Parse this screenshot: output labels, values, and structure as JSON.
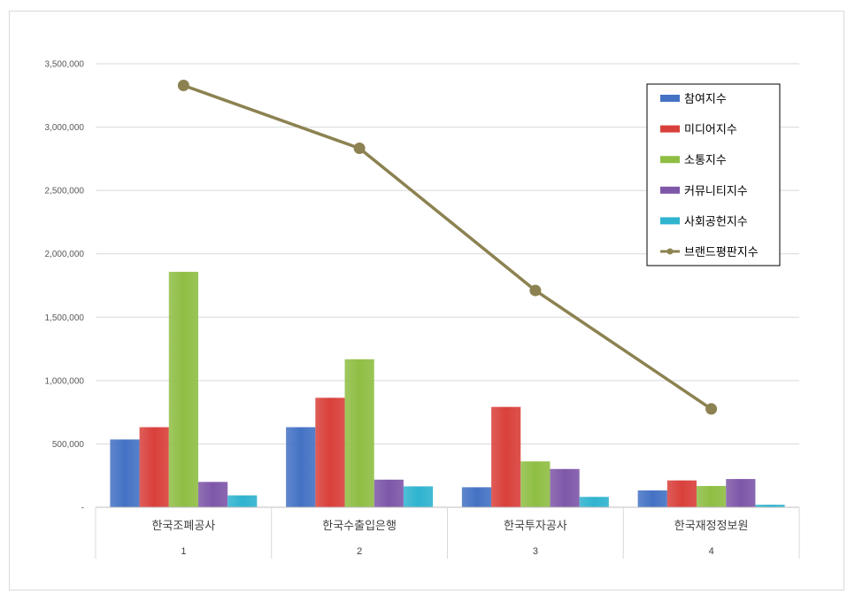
{
  "chart_data": {
    "type": "bar",
    "categories": [
      "한국조폐공사",
      "한국수출입은행",
      "한국투자공사",
      "한국재정정보원"
    ],
    "category_index": [
      "1",
      "2",
      "3",
      "4"
    ],
    "ylim": [
      0,
      3500000
    ],
    "y_ticks": [
      {
        "value": 0,
        "label": "-"
      },
      {
        "value": 500000,
        "label": "500,000"
      },
      {
        "value": 1000000,
        "label": "1,000,000"
      },
      {
        "value": 1500000,
        "label": "1,500,000"
      },
      {
        "value": 2000000,
        "label": "2,000,000"
      },
      {
        "value": 2500000,
        "label": "2,500,000"
      },
      {
        "value": 3000000,
        "label": "3,000,000"
      },
      {
        "value": 3500000,
        "label": "3,500,000"
      }
    ],
    "grid": true,
    "legend_position": "top-right",
    "series": [
      {
        "name": "참여지수",
        "kind": "bar",
        "color": "#4472c4",
        "values": [
          535000,
          632000,
          158000,
          133000
        ]
      },
      {
        "name": "미디어지수",
        "kind": "bar",
        "color": "#d9403b",
        "values": [
          632000,
          864000,
          792000,
          212000
        ]
      },
      {
        "name": "소통지수",
        "kind": "bar",
        "color": "#8fbe44",
        "values": [
          1858000,
          1168000,
          362000,
          168000
        ]
      },
      {
        "name": "커뮤니티지수",
        "kind": "bar",
        "color": "#7e57a8",
        "values": [
          200000,
          218000,
          302000,
          223000
        ]
      },
      {
        "name": "사회공헌지수",
        "kind": "bar",
        "color": "#2fb3cf",
        "values": [
          94000,
          165000,
          82000,
          20000
        ]
      },
      {
        "name": "브랜드평판지수",
        "kind": "line",
        "color": "#8c8251",
        "values": [
          3329000,
          2833000,
          1711000,
          776000
        ]
      }
    ]
  }
}
